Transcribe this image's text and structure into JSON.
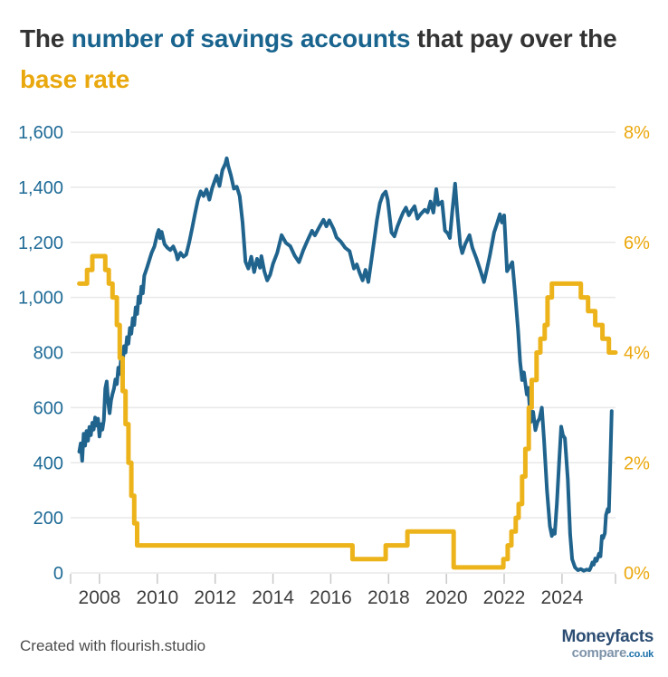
{
  "title": {
    "part1": "The ",
    "highlight_blue": "number of savings accounts",
    "part2": " that pay over the ",
    "highlight_gold": "base rate",
    "dark_color": "#333333",
    "blue_color": "#19648e",
    "gold_color": "#e9a80e"
  },
  "footer": {
    "credit": "Created with flourish.studio",
    "logo_line1": "Moneyfacts",
    "logo_line2_main": "compare",
    "logo_line2_suffix": ".co.uk"
  },
  "chart_data": {
    "type": "line",
    "title": "The number of savings accounts that pay over the base rate",
    "x_axis": {
      "range": [
        2007.0,
        2025.85
      ],
      "tick_years": [
        2008,
        2010,
        2012,
        2014,
        2016,
        2018,
        2020,
        2022,
        2024
      ],
      "tick_labels": [
        "2008",
        "2010",
        "2012",
        "2014",
        "2016",
        "2018",
        "2020",
        "2022",
        "2024"
      ],
      "label_color": "#3f3f3f",
      "tick_color": "#c8c8c8"
    },
    "y_axis_left": {
      "title": "Number of savings accounts",
      "range": [
        0,
        1600
      ],
      "tick_values": [
        0,
        200,
        400,
        600,
        800,
        1000,
        1200,
        1400,
        1600
      ],
      "tick_labels": [
        "0",
        "200",
        "400",
        "600",
        "800",
        "1,000",
        "1,200",
        "1,400",
        "1,600"
      ],
      "label_color": "#1e6a96"
    },
    "y_axis_right": {
      "title": "Base rate",
      "range": [
        0,
        8
      ],
      "tick_values": [
        0,
        2,
        4,
        6,
        8
      ],
      "tick_labels": [
        "0%",
        "2%",
        "4%",
        "6%",
        "8%"
      ],
      "label_color": "#eba70c"
    },
    "grid": {
      "color": "#e8e8e8",
      "horizontal": true,
      "vertical": false
    },
    "series": [
      {
        "name": "Number of savings accounts",
        "axis": "left",
        "color": "#20648e",
        "stroke_width": 4,
        "render": "line",
        "points": [
          [
            2007.3,
            440
          ],
          [
            2007.35,
            470
          ],
          [
            2007.4,
            407
          ],
          [
            2007.45,
            505
          ],
          [
            2007.5,
            462
          ],
          [
            2007.55,
            515
          ],
          [
            2007.6,
            480
          ],
          [
            2007.65,
            530
          ],
          [
            2007.7,
            500
          ],
          [
            2007.75,
            545
          ],
          [
            2007.8,
            520
          ],
          [
            2007.85,
            564
          ],
          [
            2007.9,
            535
          ],
          [
            2007.95,
            560
          ],
          [
            2008.0,
            495
          ],
          [
            2008.05,
            540
          ],
          [
            2008.1,
            520
          ],
          [
            2008.15,
            555
          ],
          [
            2008.2,
            669
          ],
          [
            2008.25,
            695
          ],
          [
            2008.3,
            620
          ],
          [
            2008.35,
            580
          ],
          [
            2008.4,
            626
          ],
          [
            2008.45,
            650
          ],
          [
            2008.5,
            669
          ],
          [
            2008.55,
            702
          ],
          [
            2008.6,
            685
          ],
          [
            2008.65,
            745
          ],
          [
            2008.7,
            722
          ],
          [
            2008.75,
            784
          ],
          [
            2008.8,
            760
          ],
          [
            2008.85,
            823
          ],
          [
            2008.9,
            800
          ],
          [
            2008.95,
            856
          ],
          [
            2009.0,
            832
          ],
          [
            2009.05,
            889
          ],
          [
            2009.1,
            868
          ],
          [
            2009.15,
            925
          ],
          [
            2009.2,
            900
          ],
          [
            2009.25,
            964
          ],
          [
            2009.3,
            940
          ],
          [
            2009.35,
            1003
          ],
          [
            2009.4,
            980
          ],
          [
            2009.45,
            1039
          ],
          [
            2009.5,
            1015
          ],
          [
            2009.55,
            1079
          ],
          [
            2009.65,
            1110
          ],
          [
            2009.8,
            1161
          ],
          [
            2009.9,
            1185
          ],
          [
            2010.0,
            1230
          ],
          [
            2010.05,
            1245
          ],
          [
            2010.1,
            1215
          ],
          [
            2010.15,
            1238
          ],
          [
            2010.25,
            1193
          ],
          [
            2010.35,
            1180
          ],
          [
            2010.45,
            1172
          ],
          [
            2010.55,
            1185
          ],
          [
            2010.65,
            1160
          ],
          [
            2010.7,
            1138
          ],
          [
            2010.8,
            1162
          ],
          [
            2010.9,
            1148
          ],
          [
            2011.0,
            1155
          ],
          [
            2011.1,
            1198
          ],
          [
            2011.2,
            1248
          ],
          [
            2011.3,
            1302
          ],
          [
            2011.4,
            1352
          ],
          [
            2011.5,
            1385
          ],
          [
            2011.6,
            1368
          ],
          [
            2011.7,
            1392
          ],
          [
            2011.8,
            1355
          ],
          [
            2011.9,
            1398
          ],
          [
            2012.0,
            1428
          ],
          [
            2012.05,
            1442
          ],
          [
            2012.15,
            1405
          ],
          [
            2012.25,
            1462
          ],
          [
            2012.35,
            1485
          ],
          [
            2012.4,
            1505
          ],
          [
            2012.45,
            1478
          ],
          [
            2012.55,
            1442
          ],
          [
            2012.65,
            1395
          ],
          [
            2012.75,
            1402
          ],
          [
            2012.85,
            1368
          ],
          [
            2012.95,
            1272
          ],
          [
            2013.05,
            1130
          ],
          [
            2013.15,
            1105
          ],
          [
            2013.25,
            1148
          ],
          [
            2013.35,
            1092
          ],
          [
            2013.45,
            1140
          ],
          [
            2013.55,
            1108
          ],
          [
            2013.6,
            1150
          ],
          [
            2013.7,
            1095
          ],
          [
            2013.8,
            1062
          ],
          [
            2013.9,
            1082
          ],
          [
            2014.0,
            1122
          ],
          [
            2014.15,
            1162
          ],
          [
            2014.3,
            1226
          ],
          [
            2014.45,
            1198
          ],
          [
            2014.6,
            1186
          ],
          [
            2014.75,
            1152
          ],
          [
            2014.9,
            1128
          ],
          [
            2015.05,
            1172
          ],
          [
            2015.2,
            1208
          ],
          [
            2015.35,
            1242
          ],
          [
            2015.45,
            1225
          ],
          [
            2015.6,
            1255
          ],
          [
            2015.75,
            1282
          ],
          [
            2015.85,
            1258
          ],
          [
            2015.95,
            1280
          ],
          [
            2016.1,
            1248
          ],
          [
            2016.2,
            1218
          ],
          [
            2016.35,
            1202
          ],
          [
            2016.5,
            1180
          ],
          [
            2016.65,
            1168
          ],
          [
            2016.8,
            1105
          ],
          [
            2016.9,
            1120
          ],
          [
            2017.0,
            1088
          ],
          [
            2017.1,
            1062
          ],
          [
            2017.2,
            1100
          ],
          [
            2017.3,
            1056
          ],
          [
            2017.4,
            1130
          ],
          [
            2017.5,
            1205
          ],
          [
            2017.6,
            1282
          ],
          [
            2017.7,
            1342
          ],
          [
            2017.8,
            1372
          ],
          [
            2017.9,
            1384
          ],
          [
            2017.97,
            1355
          ],
          [
            2018.1,
            1236
          ],
          [
            2018.2,
            1222
          ],
          [
            2018.3,
            1256
          ],
          [
            2018.4,
            1283
          ],
          [
            2018.5,
            1308
          ],
          [
            2018.6,
            1326
          ],
          [
            2018.7,
            1298
          ],
          [
            2018.8,
            1316
          ],
          [
            2018.9,
            1331
          ],
          [
            2019.0,
            1286
          ],
          [
            2019.1,
            1301
          ],
          [
            2019.25,
            1318
          ],
          [
            2019.35,
            1309
          ],
          [
            2019.45,
            1348
          ],
          [
            2019.55,
            1308
          ],
          [
            2019.65,
            1393
          ],
          [
            2019.72,
            1336
          ],
          [
            2019.85,
            1348
          ],
          [
            2019.95,
            1243
          ],
          [
            2020.05,
            1232
          ],
          [
            2020.12,
            1216
          ],
          [
            2020.2,
            1310
          ],
          [
            2020.3,
            1413
          ],
          [
            2020.38,
            1305
          ],
          [
            2020.48,
            1190
          ],
          [
            2020.55,
            1161
          ],
          [
            2020.65,
            1193
          ],
          [
            2020.8,
            1226
          ],
          [
            2020.9,
            1180
          ],
          [
            2021.05,
            1138
          ],
          [
            2021.2,
            1090
          ],
          [
            2021.3,
            1056
          ],
          [
            2021.4,
            1102
          ],
          [
            2021.5,
            1151
          ],
          [
            2021.65,
            1236
          ],
          [
            2021.75,
            1268
          ],
          [
            2021.85,
            1302
          ],
          [
            2021.92,
            1272
          ],
          [
            2022.0,
            1298
          ],
          [
            2022.1,
            1095
          ],
          [
            2022.18,
            1110
          ],
          [
            2022.28,
            1128
          ],
          [
            2022.38,
            1010
          ],
          [
            2022.48,
            880
          ],
          [
            2022.55,
            767
          ],
          [
            2022.62,
            700
          ],
          [
            2022.68,
            728
          ],
          [
            2022.78,
            648
          ],
          [
            2022.83,
            672
          ],
          [
            2022.92,
            548
          ],
          [
            2023.0,
            585
          ],
          [
            2023.08,
            518
          ],
          [
            2023.15,
            548
          ],
          [
            2023.22,
            560
          ],
          [
            2023.3,
            600
          ],
          [
            2023.38,
            480
          ],
          [
            2023.48,
            300
          ],
          [
            2023.58,
            170
          ],
          [
            2023.65,
            134
          ],
          [
            2023.7,
            155
          ],
          [
            2023.75,
            142
          ],
          [
            2023.82,
            250
          ],
          [
            2023.9,
            400
          ],
          [
            2023.97,
            531
          ],
          [
            2024.03,
            500
          ],
          [
            2024.1,
            489
          ],
          [
            2024.2,
            340
          ],
          [
            2024.28,
            140
          ],
          [
            2024.35,
            50
          ],
          [
            2024.45,
            20
          ],
          [
            2024.55,
            10
          ],
          [
            2024.65,
            14
          ],
          [
            2024.75,
            8
          ],
          [
            2024.85,
            12
          ],
          [
            2024.95,
            10
          ],
          [
            2025.0,
            22
          ],
          [
            2025.05,
            38
          ],
          [
            2025.1,
            30
          ],
          [
            2025.15,
            52
          ],
          [
            2025.2,
            44
          ],
          [
            2025.28,
            70
          ],
          [
            2025.33,
            60
          ],
          [
            2025.38,
            134
          ],
          [
            2025.42,
            126
          ],
          [
            2025.48,
            144
          ],
          [
            2025.52,
            210
          ],
          [
            2025.58,
            232
          ],
          [
            2025.62,
            222
          ],
          [
            2025.68,
            440
          ],
          [
            2025.72,
            587
          ]
        ]
      },
      {
        "name": "Base rate",
        "axis": "right",
        "color": "#ecb31b",
        "stroke_width": 5,
        "render": "step-after",
        "points": [
          [
            2007.3,
            5.25
          ],
          [
            2007.57,
            5.5
          ],
          [
            2007.75,
            5.75
          ],
          [
            2008.2,
            5.5
          ],
          [
            2008.32,
            5.25
          ],
          [
            2008.45,
            5.0
          ],
          [
            2008.6,
            4.5
          ],
          [
            2008.7,
            3.9
          ],
          [
            2008.8,
            3.3
          ],
          [
            2008.9,
            2.7
          ],
          [
            2009.0,
            2.0
          ],
          [
            2009.1,
            1.4
          ],
          [
            2009.2,
            0.9
          ],
          [
            2009.3,
            0.5
          ],
          [
            2016.75,
            0.25
          ],
          [
            2017.9,
            0.5
          ],
          [
            2018.65,
            0.75
          ],
          [
            2020.25,
            0.1
          ],
          [
            2021.97,
            0.25
          ],
          [
            2022.12,
            0.5
          ],
          [
            2022.25,
            0.75
          ],
          [
            2022.4,
            1.0
          ],
          [
            2022.5,
            1.25
          ],
          [
            2022.62,
            1.75
          ],
          [
            2022.73,
            2.25
          ],
          [
            2022.85,
            3.0
          ],
          [
            2022.95,
            3.5
          ],
          [
            2023.12,
            4.0
          ],
          [
            2023.25,
            4.25
          ],
          [
            2023.4,
            4.5
          ],
          [
            2023.5,
            5.0
          ],
          [
            2023.65,
            5.25
          ],
          [
            2024.65,
            5.0
          ],
          [
            2024.9,
            4.75
          ],
          [
            2025.15,
            4.5
          ],
          [
            2025.4,
            4.25
          ],
          [
            2025.62,
            4.0
          ],
          [
            2025.85,
            4.0
          ]
        ]
      }
    ]
  }
}
